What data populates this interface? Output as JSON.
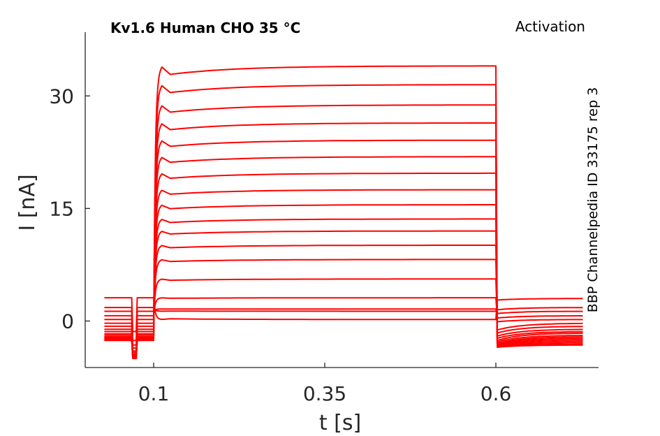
{
  "chart_data": {
    "type": "line",
    "title": "Kv1.6  Human  CHO  35 °C",
    "annotation_top_right": "Activation",
    "annotation_side": "BBP Channelpedia ID 33175 rep 3",
    "xlabel": "t [s]",
    "ylabel": "I [nA]",
    "xlim": [
      0.0,
      0.75
    ],
    "ylim": [
      -6.2,
      38.5
    ],
    "x_ticks": [
      0.1,
      0.35,
      0.6
    ],
    "x_tick_labels": [
      "0.1",
      "0.35",
      "0.6"
    ],
    "y_ticks": [
      0,
      15,
      30
    ],
    "y_tick_labels": [
      "0",
      "15",
      "30"
    ],
    "grid": false,
    "color": "#ff0000",
    "protocol": {
      "trace_start": 0.028,
      "dip_start": 0.068,
      "dip_end": 0.076,
      "step_start": 0.1,
      "step_end": 0.6,
      "trace_end": 0.727
    },
    "series": [
      {
        "holding": 3.1,
        "dip": -1.4,
        "steady": 0.2,
        "tail": 3.0
      },
      {
        "holding": 1.8,
        "dip": -2.6,
        "steady": 1.3,
        "tail": 1.8
      },
      {
        "holding": 1.3,
        "dip": -3.2,
        "steady": 1.6,
        "tail": 1.3
      },
      {
        "holding": 0.7,
        "dip": -3.6,
        "steady": 3.1,
        "tail": 0.7
      },
      {
        "holding": 0.2,
        "dip": -4.0,
        "steady": 5.6,
        "tail": 0.2
      },
      {
        "holding": -0.3,
        "dip": -4.2,
        "steady": 8.2,
        "tail": -0.3
      },
      {
        "holding": -0.7,
        "dip": -4.4,
        "steady": 10.1,
        "tail": -0.7
      },
      {
        "holding": -1.1,
        "dip": -4.5,
        "steady": 12.0,
        "tail": -1.1
      },
      {
        "holding": -1.4,
        "dip": -4.6,
        "steady": 13.6,
        "tail": -1.4
      },
      {
        "holding": -1.7,
        "dip": -4.7,
        "steady": 15.5,
        "tail": -1.6
      },
      {
        "holding": -1.9,
        "dip": -4.7,
        "steady": 17.5,
        "tail": -1.9
      },
      {
        "holding": -2.1,
        "dip": -4.8,
        "steady": 19.7,
        "tail": -2.1
      },
      {
        "holding": -2.2,
        "dip": -4.8,
        "steady": 21.9,
        "tail": -2.3
      },
      {
        "holding": -2.3,
        "dip": -4.8,
        "steady": 24.1,
        "tail": -2.5
      },
      {
        "holding": -2.4,
        "dip": -4.9,
        "steady": 26.4,
        "tail": -2.7
      },
      {
        "holding": -2.5,
        "dip": -4.9,
        "steady": 28.8,
        "tail": -2.9
      },
      {
        "holding": -2.5,
        "dip": -4.9,
        "steady": 31.5,
        "tail": -3.1
      },
      {
        "holding": -2.6,
        "dip": -5.0,
        "steady": 34.0,
        "tail": -3.2
      }
    ]
  }
}
